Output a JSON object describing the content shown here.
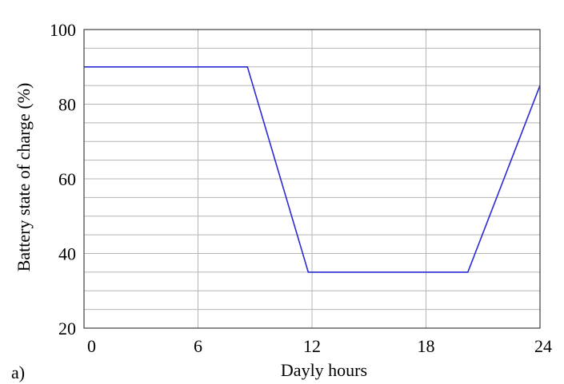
{
  "chart_data": {
    "type": "line",
    "xlabel": "Dayly hours",
    "ylabel": "Battery state of charge (%)",
    "panel_label": "a)",
    "xlim": [
      0,
      24
    ],
    "ylim": [
      20,
      100
    ],
    "xticks": [
      0,
      6,
      12,
      18,
      24
    ],
    "yticks": [
      20,
      40,
      60,
      80,
      100
    ],
    "minor_y_gridlines": [
      25,
      30,
      35,
      45,
      50,
      55,
      65,
      70,
      75,
      85,
      90,
      95
    ],
    "grid": true,
    "series": [
      {
        "x": [
          0,
          8.6,
          11.8,
          20.2,
          24
        ],
        "y": [
          90,
          90,
          35,
          35,
          85
        ],
        "color": "#2a2ad4"
      }
    ],
    "colors": {
      "line": "#2a2ad4",
      "grid": "#b4b4b4",
      "frame": "#404040"
    }
  }
}
